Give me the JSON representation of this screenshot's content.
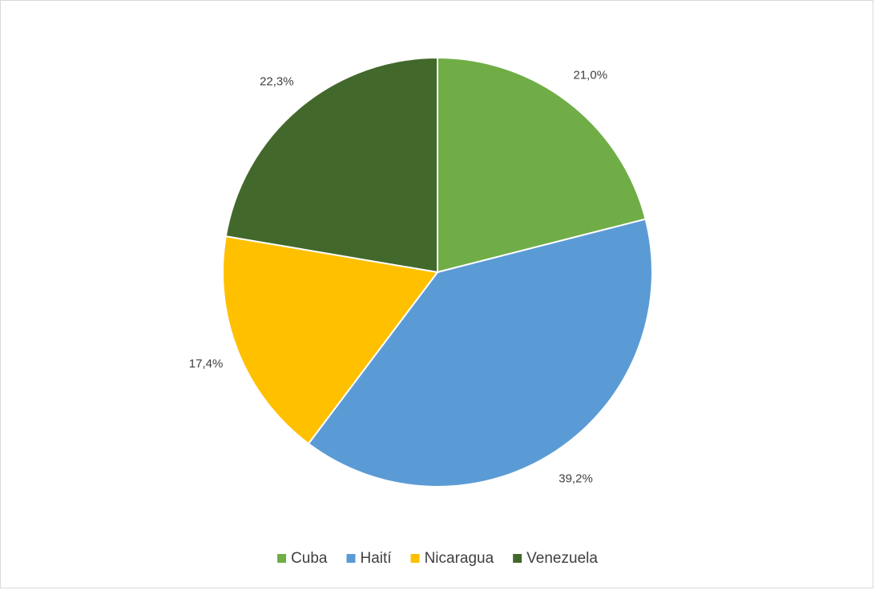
{
  "chart_data": {
    "type": "pie",
    "categories": [
      "Cuba",
      "Haití",
      "Nicaragua",
      "Venezuela"
    ],
    "values": [
      21.0,
      39.2,
      17.4,
      22.3
    ],
    "value_labels": [
      "21,0%",
      "39,2%",
      "17,4%",
      "22,3%"
    ],
    "colors": [
      "#70ad47",
      "#5b9bd5",
      "#ffc000",
      "#43682b"
    ],
    "legend": "bottom"
  }
}
